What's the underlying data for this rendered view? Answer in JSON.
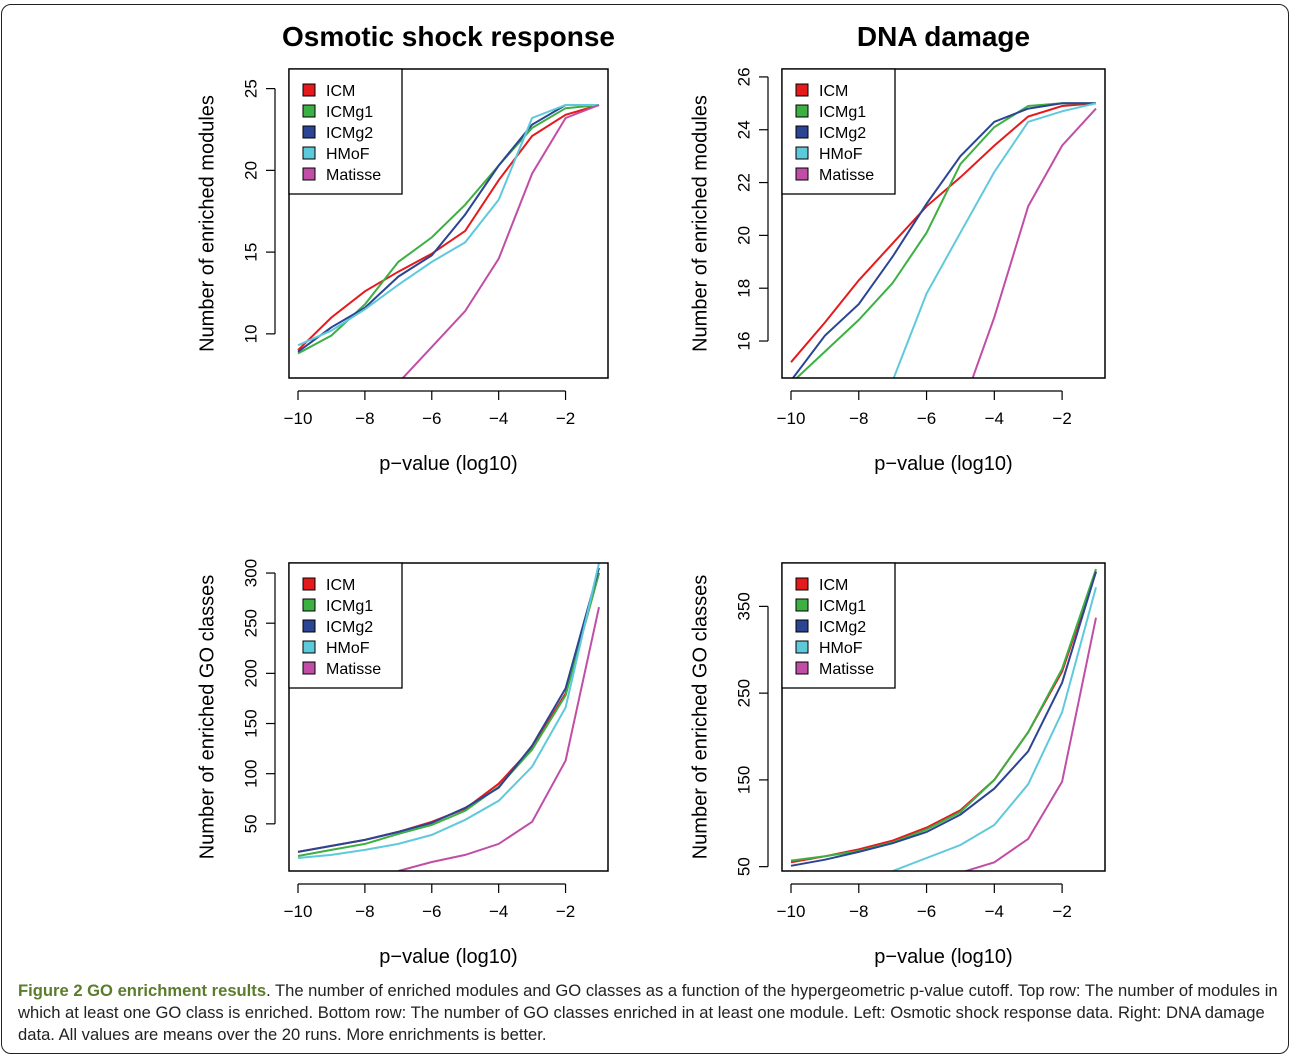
{
  "chart_data": [
    {
      "type": "line",
      "title": "Osmotic shock response",
      "xlabel": "p−value (log10)",
      "ylabel": "Number of enriched modules",
      "xlim": [
        -10,
        -1
      ],
      "ylim": [
        7.3,
        26.2
      ],
      "xticks": [
        -10,
        -8,
        -6,
        -4,
        -2
      ],
      "xtick_labels": [
        "−10",
        "−8",
        "−6",
        "−4",
        "−2"
      ],
      "yticks": [
        10,
        15,
        20,
        25
      ],
      "ytick_labels": [
        "10",
        "15",
        "20",
        "25"
      ],
      "legend_position": "top-left",
      "x": [
        -10,
        -9,
        -8,
        -7,
        -6,
        -5,
        -4,
        -3,
        -2,
        -1
      ],
      "series": [
        {
          "name": "ICM",
          "color": "#e41a1c",
          "values": [
            9.0,
            11.0,
            12.6,
            13.8,
            14.9,
            16.3,
            19.4,
            22.1,
            23.4,
            24.0
          ]
        },
        {
          "name": "ICMg1",
          "color": "#3cb043",
          "values": [
            8.8,
            9.9,
            11.8,
            14.4,
            15.9,
            17.9,
            20.3,
            22.6,
            23.8,
            24.0
          ]
        },
        {
          "name": "ICMg2",
          "color": "#2c4593",
          "values": [
            8.9,
            10.4,
            11.6,
            13.5,
            14.8,
            17.3,
            20.3,
            22.8,
            24.0,
            24.0
          ]
        },
        {
          "name": "HMoF",
          "color": "#5fc9dc",
          "values": [
            9.3,
            10.2,
            11.5,
            13.0,
            14.4,
            15.6,
            18.2,
            23.2,
            24.0,
            24.0
          ]
        },
        {
          "name": "Matisse",
          "color": "#c14ea6",
          "values": [
            null,
            null,
            null,
            7.0,
            9.2,
            11.4,
            14.6,
            19.8,
            23.2,
            24.0
          ]
        }
      ]
    },
    {
      "type": "line",
      "title": "DNA damage",
      "xlabel": "p−value (log10)",
      "ylabel": "Number of enriched modules",
      "xlim": [
        -10,
        -1
      ],
      "ylim": [
        14.6,
        26.3
      ],
      "xticks": [
        -10,
        -8,
        -6,
        -4,
        -2
      ],
      "xtick_labels": [
        "−10",
        "−8",
        "−6",
        "−4",
        "−2"
      ],
      "yticks": [
        16,
        18,
        20,
        22,
        24,
        26
      ],
      "ytick_labels": [
        "16",
        "18",
        "20",
        "22",
        "24",
        "26"
      ],
      "legend_position": "top-left",
      "x": [
        -10,
        -9,
        -8,
        -7,
        -6,
        -5,
        -4,
        -3,
        -2,
        -1
      ],
      "series": [
        {
          "name": "ICM",
          "color": "#e41a1c",
          "values": [
            15.2,
            16.7,
            18.3,
            19.7,
            21.1,
            22.2,
            23.4,
            24.5,
            24.9,
            25.0
          ]
        },
        {
          "name": "ICMg1",
          "color": "#3cb043",
          "values": [
            14.4,
            15.6,
            16.8,
            18.2,
            20.1,
            22.7,
            24.1,
            24.9,
            25.0,
            25.0
          ]
        },
        {
          "name": "ICMg2",
          "color": "#2c4593",
          "values": [
            14.5,
            16.2,
            17.4,
            19.2,
            21.2,
            23.0,
            24.3,
            24.8,
            25.0,
            25.0
          ]
        },
        {
          "name": "HMoF",
          "color": "#5fc9dc",
          "values": [
            null,
            null,
            null,
            14.5,
            17.8,
            20.1,
            22.4,
            24.3,
            24.7,
            25.0
          ]
        },
        {
          "name": "Matisse",
          "color": "#c14ea6",
          "values": [
            null,
            null,
            null,
            null,
            null,
            13.3,
            16.9,
            21.1,
            23.4,
            24.8
          ]
        }
      ]
    },
    {
      "type": "line",
      "title": "",
      "xlabel": "p−value (log10)",
      "ylabel": "Number of enriched GO classes",
      "xlim": [
        -10,
        -1
      ],
      "ylim": [
        3,
        310
      ],
      "xticks": [
        -10,
        -8,
        -6,
        -4,
        -2
      ],
      "xtick_labels": [
        "−10",
        "−8",
        "−6",
        "−4",
        "−2"
      ],
      "yticks": [
        50,
        100,
        150,
        200,
        250,
        300
      ],
      "ytick_labels": [
        "50",
        "100",
        "150",
        "200",
        "250",
        "300"
      ],
      "legend_position": "top-left",
      "x": [
        -10,
        -9,
        -8,
        -7,
        -6,
        -5,
        -4,
        -3,
        -2,
        -1
      ],
      "series": [
        {
          "name": "ICM",
          "color": "#e41a1c",
          "values": [
            22,
            28,
            34,
            42,
            52,
            65,
            90,
            126,
            180,
            300
          ]
        },
        {
          "name": "ICMg1",
          "color": "#3cb043",
          "values": [
            18,
            24,
            30,
            40,
            49,
            63,
            87,
            124,
            178,
            300
          ]
        },
        {
          "name": "ICMg2",
          "color": "#2c4593",
          "values": [
            22,
            28,
            34,
            42,
            51,
            66,
            86,
            128,
            185,
            305
          ]
        },
        {
          "name": "HMoF",
          "color": "#5fc9dc",
          "values": [
            16,
            19,
            24,
            30,
            39,
            54,
            73,
            107,
            166,
            310
          ]
        },
        {
          "name": "Matisse",
          "color": "#c14ea6",
          "values": [
            null,
            null,
            null,
            3,
            12,
            19,
            30,
            52,
            113,
            266
          ]
        }
      ]
    },
    {
      "type": "line",
      "title": "",
      "xlabel": "p−value (log10)",
      "ylabel": "Number of enriched GO classes",
      "xlim": [
        -10,
        -1
      ],
      "ylim": [
        45,
        400
      ],
      "xticks": [
        -10,
        -8,
        -6,
        -4,
        -2
      ],
      "xtick_labels": [
        "−10",
        "−8",
        "−6",
        "−4",
        "−2"
      ],
      "yticks": [
        50,
        150,
        250,
        350
      ],
      "ytick_labels": [
        "50",
        "150",
        "250",
        "350"
      ],
      "legend_position": "top-left",
      "x": [
        -10,
        -9,
        -8,
        -7,
        -6,
        -5,
        -4,
        -3,
        -2,
        -1
      ],
      "series": [
        {
          "name": "ICM",
          "color": "#e41a1c",
          "values": [
            55,
            62,
            70,
            80,
            95,
            115,
            150,
            205,
            275,
            390
          ]
        },
        {
          "name": "ICMg1",
          "color": "#3cb043",
          "values": [
            57,
            62,
            68,
            78,
            93,
            113,
            150,
            205,
            278,
            393
          ]
        },
        {
          "name": "ICMg2",
          "color": "#2c4593",
          "values": [
            51,
            58,
            67,
            77,
            90,
            110,
            140,
            183,
            262,
            390
          ]
        },
        {
          "name": "HMoF",
          "color": "#5fc9dc",
          "values": [
            null,
            null,
            null,
            45,
            60,
            75,
            98,
            145,
            228,
            372
          ]
        },
        {
          "name": "Matisse",
          "color": "#c14ea6",
          "values": [
            null,
            null,
            null,
            null,
            null,
            43,
            55,
            82,
            148,
            337
          ]
        }
      ]
    }
  ],
  "caption": {
    "label": "Figure 2 GO enrichment results",
    "text": ". The number of enriched modules and GO classes as a function of the hypergeometric p-value cutoff. Top row: The number of modules in which at least one GO class is enriched. Bottom row: The number of GO classes enriched in at least one module. Left: Osmotic shock response data. Right: DNA damage data. All values are means over the 20 runs. More enrichments is better."
  }
}
